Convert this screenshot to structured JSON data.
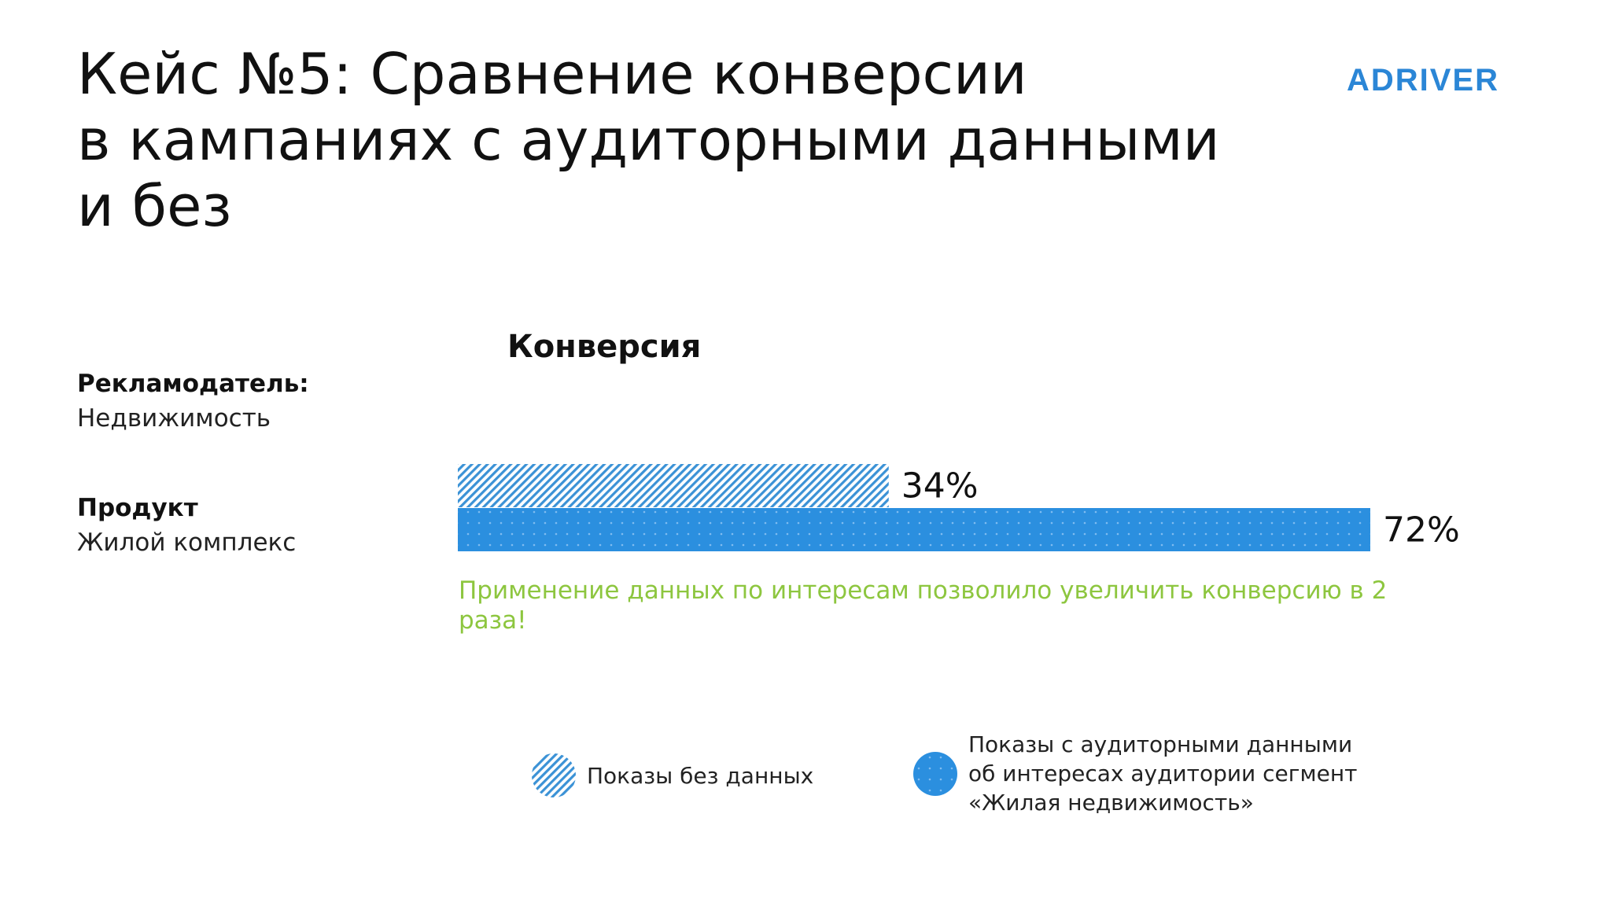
{
  "slide": {
    "title_lines": [
      "Кейс №5: Сравнение конверсии",
      "в кампаниях с аудиторными данными",
      "и без"
    ],
    "logo_text": "ADRIVER",
    "advertiser_label": "Рекламодатель:",
    "advertiser_value": "Недвижимость",
    "product_label": "Продукт",
    "product_value": "Жилой комплекс",
    "highlight_text": "Применение данных по интересам позволило увеличить конверсию в 2 раза!",
    "legend": [
      {
        "lines": [
          "Показы без данных"
        ],
        "style": "hatched"
      },
      {
        "lines": [
          "Показы с аудиторными данными",
          "об интересах аудитории сегмент",
          "«Жилая недвижимость»"
        ],
        "style": "solid-dotted"
      }
    ]
  },
  "colors": {
    "accent": "#2b8fdf",
    "hatch": "#3b92d6",
    "highlight": "#8dc63f",
    "logo": "#2b86d6"
  },
  "chart_data": {
    "type": "bar",
    "orientation": "horizontal",
    "title": "Конверсия",
    "series": [
      {
        "name": "Показы без данных",
        "value": 34,
        "label": "34%",
        "style": "hatched"
      },
      {
        "name": "Показы с аудиторными данными об интересах аудитории сегмент «Жилая недвижимость»",
        "value": 72,
        "label": "72%",
        "style": "solid-dotted"
      }
    ],
    "unit": "%",
    "xlim": [
      0,
      72
    ],
    "grid": false,
    "legend_position": "bottom"
  }
}
